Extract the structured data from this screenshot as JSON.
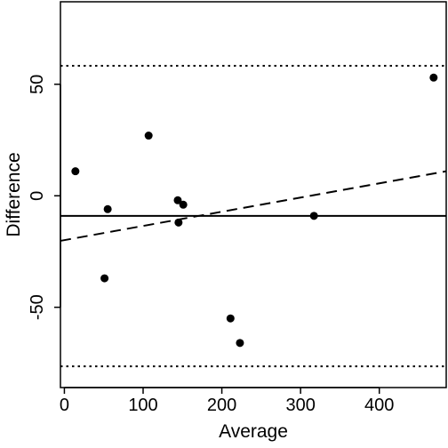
{
  "chart_data": {
    "type": "scatter",
    "title": "",
    "xlabel": "Average",
    "ylabel": "Difference",
    "xlim": [
      -5,
      485
    ],
    "ylim": [
      -86,
      87
    ],
    "xticks": [
      0,
      100,
      200,
      300,
      400
    ],
    "yticks": [
      -50,
      0,
      50
    ],
    "grid": false,
    "legend": "none",
    "points": [
      {
        "x": 14,
        "y": 11
      },
      {
        "x": 51,
        "y": -37
      },
      {
        "x": 55,
        "y": -6
      },
      {
        "x": 107,
        "y": 27
      },
      {
        "x": 144,
        "y": -2
      },
      {
        "x": 145,
        "y": -12
      },
      {
        "x": 151,
        "y": -4
      },
      {
        "x": 211,
        "y": -55
      },
      {
        "x": 223,
        "y": -66
      },
      {
        "x": 317,
        "y": -9
      },
      {
        "x": 469,
        "y": 53
      }
    ],
    "reference_lines": [
      {
        "kind": "hline",
        "style": "solid",
        "y": -9.0
      },
      {
        "kind": "hline",
        "style": "dotted",
        "y": 58.3
      },
      {
        "kind": "hline",
        "style": "dotted",
        "y": -76.5
      }
    ],
    "trend_line": {
      "style": "dashed",
      "x": [
        -5,
        485
      ],
      "y": [
        -20.2,
        11.0
      ]
    },
    "colors": {
      "ink": "#000000",
      "background": "#ffffff"
    }
  }
}
